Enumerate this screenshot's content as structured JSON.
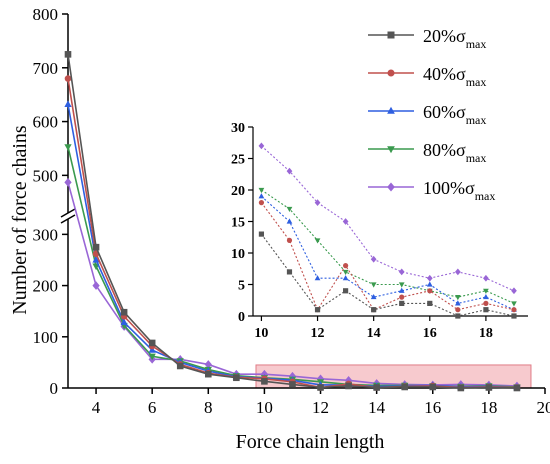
{
  "chart_data": [
    {
      "type": "line",
      "xlabel": "Force chain length",
      "ylabel": "Number of force chains",
      "xlim": [
        3,
        20
      ],
      "y_ticks": [
        0,
        100,
        200,
        300,
        500,
        600,
        700,
        800
      ],
      "x_ticks": [
        4,
        6,
        8,
        10,
        12,
        14,
        16,
        18,
        20
      ],
      "axis_break": {
        "lower": [
          0,
          330
        ],
        "upper": [
          430,
          800
        ]
      },
      "highlight_region": {
        "x": [
          9.7,
          19.5
        ],
        "y": [
          0,
          45
        ],
        "color": "#f4b8bd"
      },
      "legend_position": "top-right",
      "x": [
        3,
        4,
        5,
        6,
        7,
        8,
        9,
        10,
        11,
        12,
        13,
        14,
        15,
        16,
        17,
        18,
        19
      ],
      "series": [
        {
          "name": "20%σmax",
          "label_main": "20%σ",
          "label_sub": "max",
          "color": "#555555",
          "marker": "square",
          "values": [
            725,
            275,
            148,
            88,
            43,
            27,
            20,
            13,
            7,
            1,
            4,
            1,
            2,
            2,
            0,
            1,
            0
          ]
        },
        {
          "name": "40%σmax",
          "label_main": "40%σ",
          "label_sub": "max",
          "color": "#c0504d",
          "marker": "circle",
          "values": [
            680,
            262,
            140,
            82,
            46,
            29,
            21,
            18,
            12,
            1,
            8,
            1,
            3,
            4,
            1,
            2,
            1
          ]
        },
        {
          "name": "60%σmax",
          "label_main": "60%σ",
          "label_sub": "max",
          "color": "#2e5fe0",
          "marker": "triangle-up",
          "values": [
            632,
            250,
            128,
            74,
            50,
            33,
            22,
            19,
            15,
            6,
            6,
            3,
            4,
            5,
            2,
            3,
            1
          ]
        },
        {
          "name": "80%σmax",
          "label_main": "80%σ",
          "label_sub": "max",
          "color": "#3a9a4e",
          "marker": "triangle-down",
          "values": [
            553,
            238,
            122,
            62,
            53,
            36,
            24,
            20,
            17,
            12,
            7,
            5,
            5,
            4,
            3,
            4,
            2
          ]
        },
        {
          "name": "100%σmax",
          "label_main": "100%σ",
          "label_sub": "max",
          "color": "#9966d6",
          "marker": "diamond",
          "values": [
            487,
            200,
            120,
            56,
            56,
            46,
            27,
            27,
            23,
            18,
            15,
            9,
            7,
            6,
            7,
            6,
            4
          ]
        }
      ]
    },
    {
      "type": "line",
      "role": "inset",
      "xlim": [
        9.7,
        19.5
      ],
      "ylim": [
        0,
        30
      ],
      "x_ticks": [
        10,
        12,
        14,
        16,
        18
      ],
      "y_ticks": [
        0,
        5,
        10,
        15,
        20,
        25,
        30
      ],
      "x": [
        10,
        11,
        12,
        13,
        14,
        15,
        16,
        17,
        18,
        19
      ],
      "series_source": "same series as main chart, points x = 10..19"
    }
  ]
}
